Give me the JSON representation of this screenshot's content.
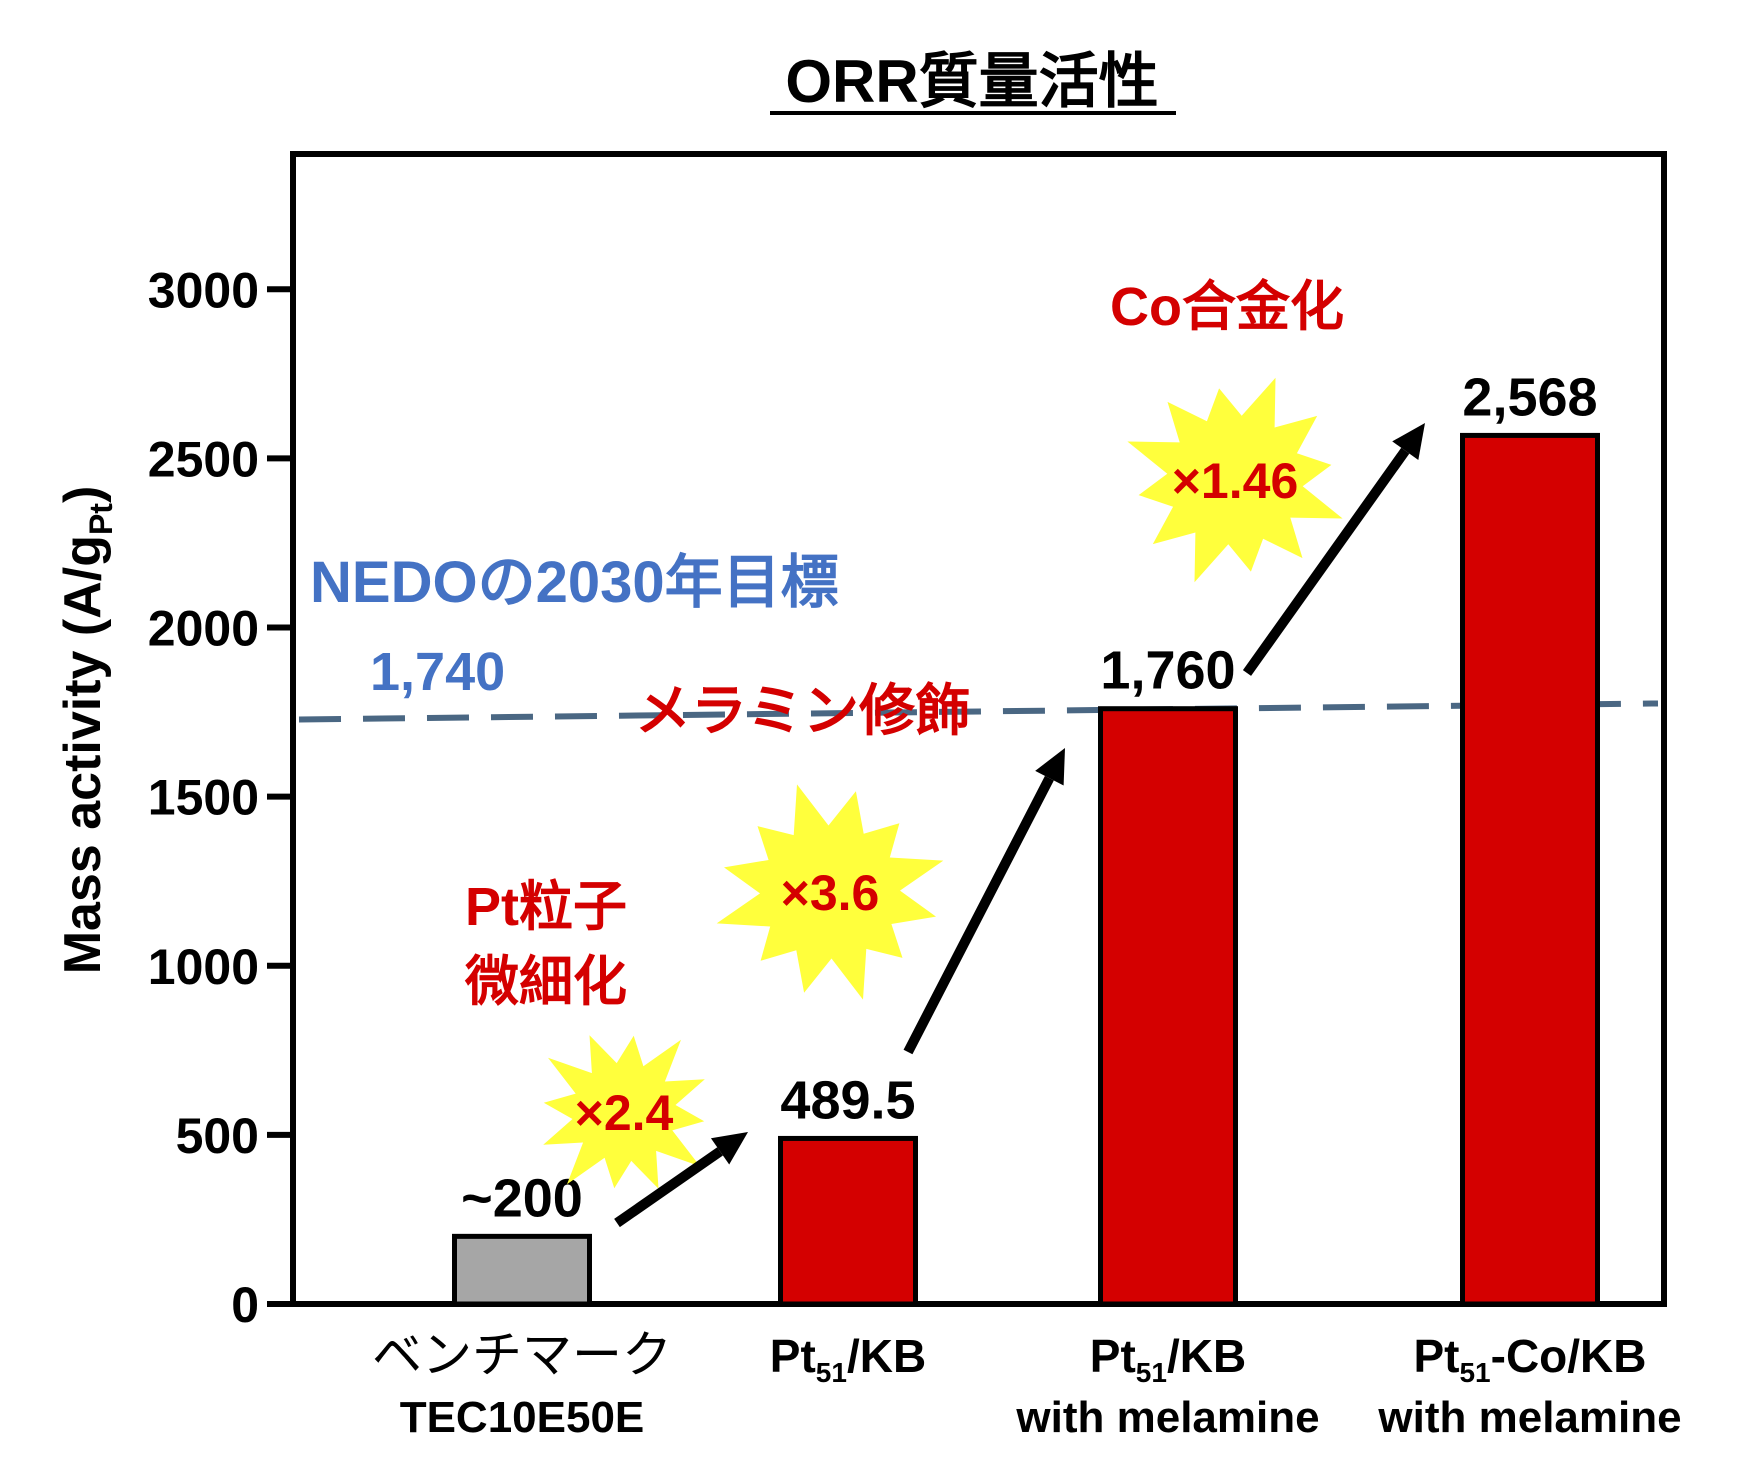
{
  "chart_data": {
    "type": "bar",
    "title": "ORR質量活性",
    "ylabel_main": "Mass activity (A/g",
    "ylabel_sub": "Pt",
    "ylabel_close": ")",
    "ylim": [
      0,
      3400
    ],
    "yticks": [
      0,
      500,
      1000,
      1500,
      2000,
      2500,
      3000
    ],
    "grid": false,
    "categories": [
      {
        "line1": "ベンチマーク",
        "line2": "TEC10E50E",
        "sub": "",
        "after": ""
      },
      {
        "line1": "Pt",
        "sub": "51",
        "after": "/KB",
        "line2": ""
      },
      {
        "line1": "Pt",
        "sub": "51",
        "after": "/KB",
        "line2": "with melamine"
      },
      {
        "line1": "Pt",
        "sub": "51",
        "after": "-Co/KB",
        "line2": "with melamine"
      }
    ],
    "values": [
      200,
      489.5,
      1760,
      2568
    ],
    "value_labels": [
      "~200",
      "489.5",
      "1,760",
      "2,568"
    ],
    "bar_colors": [
      "#a6a6a6",
      "#d40000",
      "#d40000",
      "#d40000"
    ],
    "target_line": {
      "value": 1740,
      "label_line1": "NEDOの2030年目標",
      "label_line2": "1,740",
      "color": "#4a6783",
      "text_color": "#4472c4"
    },
    "multipliers": [
      "×2.4",
      "×3.6",
      "×1.46"
    ],
    "annotations": [
      "Pt粒子",
      "微細化",
      "メラミン修飾",
      "Co合金化"
    ],
    "colors": {
      "accent_red": "#d40000",
      "burst_yellow": "#ffff3c",
      "axis": "#111111"
    }
  }
}
